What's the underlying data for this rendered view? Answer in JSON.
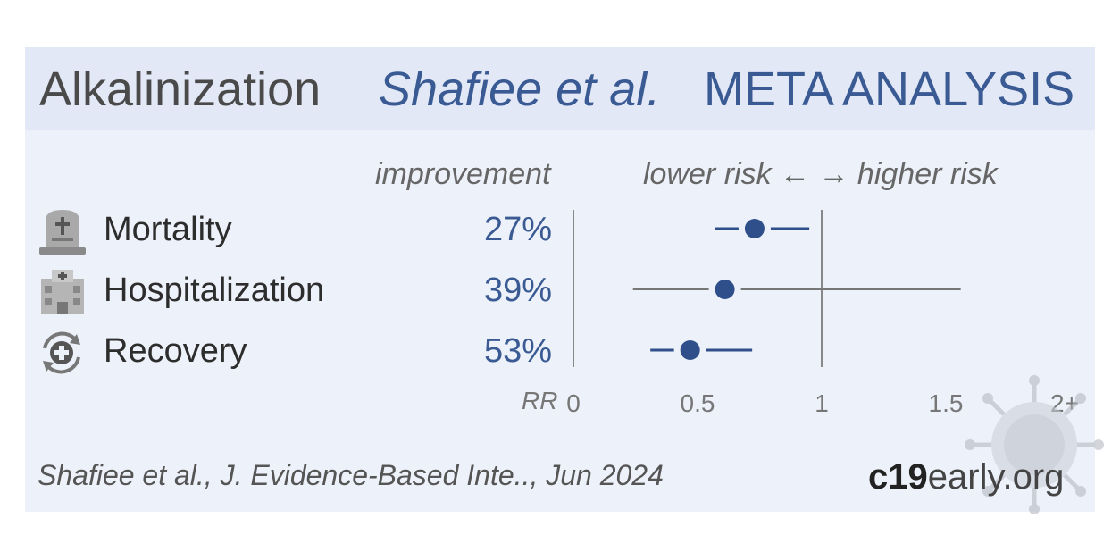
{
  "header": {
    "treatment": "Alkalinization",
    "study": "Shafiee et al.",
    "meta": "META ANALYSIS"
  },
  "columns": {
    "improvement": "improvement",
    "risk": "lower risk ←   → higher risk",
    "rr": "RR"
  },
  "outcomes": [
    {
      "label": "Mortality",
      "improvement": "27%",
      "icon": "tombstone-icon"
    },
    {
      "label": "Hospitalization",
      "improvement": "39%",
      "icon": "hospital-icon"
    },
    {
      "label": "Recovery",
      "improvement": "53%",
      "icon": "recovery-icon"
    }
  ],
  "chart_data": {
    "type": "forest",
    "xlabel": "RR",
    "xlim": [
      0,
      2
    ],
    "xticks": [
      0,
      0.5,
      1,
      1.5,
      2
    ],
    "xtick_labels": [
      "0",
      "0.5",
      "1",
      "1.5",
      "2+"
    ],
    "reference_line": 1,
    "points": [
      {
        "label": "Mortality",
        "rr": 0.73,
        "ci_low": 0.57,
        "ci_high": 0.95
      },
      {
        "label": "Hospitalization",
        "rr": 0.61,
        "ci_low": 0.24,
        "ci_high": 1.56
      },
      {
        "label": "Recovery",
        "rr": 0.47,
        "ci_low": 0.31,
        "ci_high": 0.72
      }
    ],
    "colors": {
      "point": "#2f4f8a",
      "ci": "#2f4f8a",
      "wide_ci": "#777777",
      "axis": "#888888"
    }
  },
  "footer": {
    "citation": "Shafiee et al., J. Evidence-Based Inte.., Jun 2024",
    "brand_bold": "c19",
    "brand_regular": "early.org"
  }
}
